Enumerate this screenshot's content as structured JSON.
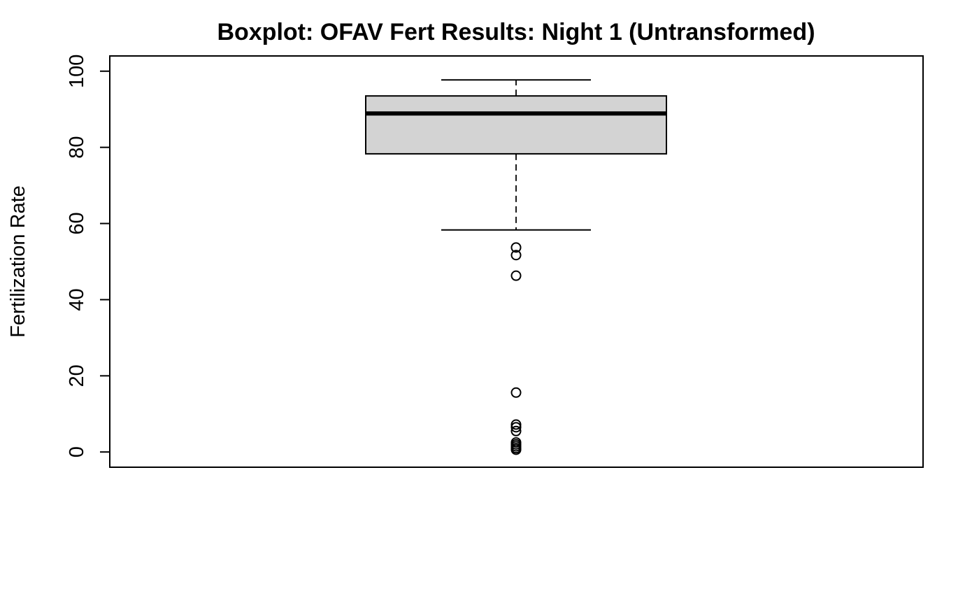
{
  "chart_data": {
    "type": "boxplot",
    "title": "Boxplot: OFAV Fert Results: Night 1 (Untransformed)",
    "xlabel": "",
    "ylabel": "Fertilization Rate",
    "ylim": [
      -4,
      104
    ],
    "yticks": [
      0,
      20,
      40,
      60,
      80,
      100
    ],
    "grid": false,
    "colors": {
      "box_fill": "#d3d3d3",
      "stroke": "#000000",
      "background": "#ffffff"
    },
    "box": {
      "whisker_low": 58.3,
      "q1": 78.3,
      "median": 88.9,
      "q3": 93.5,
      "whisker_high": 97.7
    },
    "outliers": [
      53.7,
      51.7,
      46.3,
      15.6,
      7.2,
      6.5,
      5.5,
      2.5,
      2.0,
      1.5,
      1.0,
      0.6
    ]
  }
}
